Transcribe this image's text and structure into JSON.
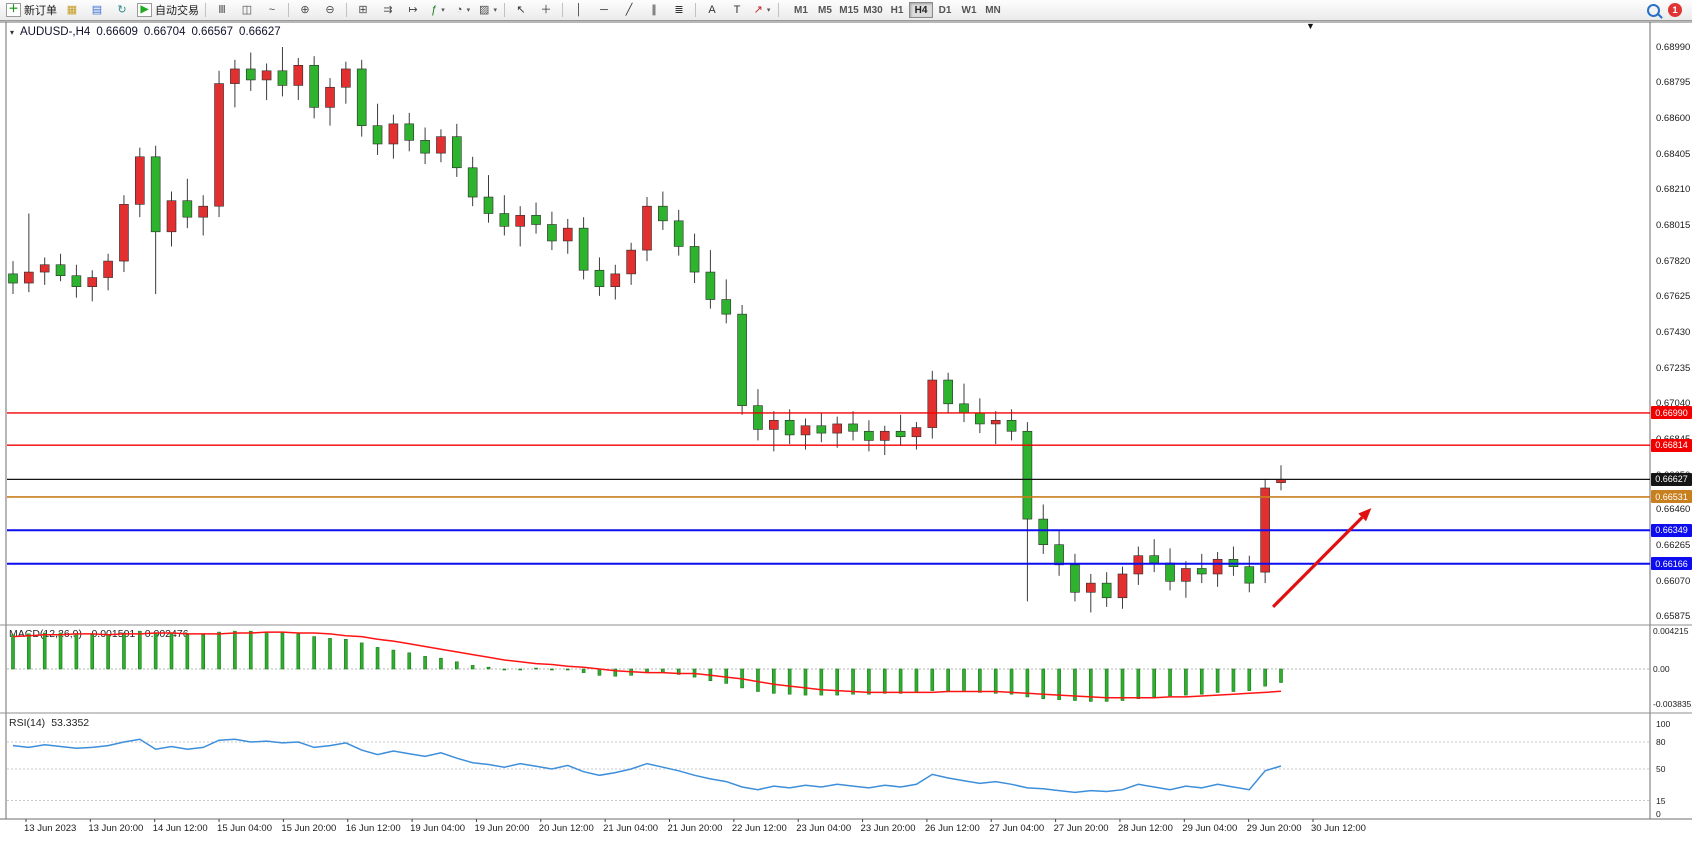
{
  "toolbar": {
    "items": [
      {
        "name": "new-order-button",
        "glyph": "＋",
        "color": "#0e9a0e",
        "label": "新订单",
        "boxed": true
      },
      {
        "name": "charts-window-button",
        "glyph": "▦",
        "color": "#c29a1a"
      },
      {
        "name": "profiles-button",
        "glyph": "▤",
        "color": "#3b6fd4"
      },
      {
        "name": "refresh-button",
        "glyph": "↻",
        "color": "#2e8b8b"
      },
      {
        "name": "auto-trading-button",
        "glyph": "▶",
        "color": "#21aa21",
        "label": "自动交易",
        "boxed": true
      },
      {
        "sep": true
      },
      {
        "name": "bar-chart-mode-button",
        "glyph": "Ⅲ",
        "color": "#4a4a4a"
      },
      {
        "name": "candlestick-mode-button",
        "glyph": "◫",
        "color": "#4a4a4a"
      },
      {
        "name": "line-chart-mode-button",
        "glyph": "~",
        "color": "#4a4a4a"
      },
      {
        "sep": true
      },
      {
        "name": "zoom-in-button",
        "glyph": "⊕",
        "color": "#4a4a4a"
      },
      {
        "name": "zoom-out-button",
        "glyph": "⊖",
        "color": "#4a4a4a"
      },
      {
        "sep": true
      },
      {
        "name": "tile-windows-button",
        "glyph": "⊞",
        "color": "#4a4a4a"
      },
      {
        "name": "auto-scroll-button",
        "glyph": "⇉",
        "color": "#4a4a4a"
      },
      {
        "name": "chart-shift-button",
        "glyph": "↦",
        "color": "#4a4a4a"
      },
      {
        "name": "indicators-button",
        "glyph": "ƒ",
        "color": "#1f7a1f",
        "dropdown": true
      },
      {
        "name": "periods-button",
        "glyph": "◔",
        "color": "#4a4a4a",
        "dropdown": true
      },
      {
        "name": "templates-button",
        "glyph": "▨",
        "color": "#4a4a4a",
        "dropdown": true
      },
      {
        "sep": true
      },
      {
        "name": "cursor-tool-button",
        "glyph": "↖",
        "color": "#333333"
      },
      {
        "name": "crosshair-tool-button",
        "glyph": "＋",
        "color": "#333333"
      },
      {
        "sep": true
      },
      {
        "name": "vertical-line-tool-button",
        "glyph": "│",
        "color": "#333333"
      },
      {
        "name": "horizontal-line-tool-button",
        "glyph": "─",
        "color": "#333333"
      },
      {
        "name": "trendline-tool-button",
        "glyph": "╱",
        "color": "#333333"
      },
      {
        "name": "channel-tool-button",
        "glyph": "∥",
        "color": "#333333"
      },
      {
        "name": "fibonacci-tool-button",
        "glyph": "≣",
        "color": "#333333"
      },
      {
        "sep": true
      },
      {
        "name": "text-tool-button",
        "glyph": "A",
        "color": "#333333"
      },
      {
        "name": "label-tool-button",
        "glyph": "T",
        "color": "#333333"
      },
      {
        "name": "arrows-tool-button",
        "glyph": "↗",
        "color": "#c22727",
        "dropdown": true
      },
      {
        "sep": true
      }
    ],
    "timeframes": [
      "M1",
      "M5",
      "M15",
      "M30",
      "H1",
      "H4",
      "D1",
      "W1",
      "MN"
    ],
    "active_timeframe": "H4",
    "notification_count": "1"
  },
  "chart": {
    "header": {
      "toggle_glyph": "▾",
      "symbol": "AUDUSD-,H4",
      "open": "0.66609",
      "high": "0.66704",
      "low": "0.66567",
      "close": "0.66627"
    },
    "shift_marker": "▼"
  },
  "macd_panel": {
    "name": "MACD(12,26,9)",
    "value_main": "-0.001501",
    "value_signal": "-0.002476",
    "scale": [
      "0.004215",
      "0.00",
      "-0.003835"
    ]
  },
  "rsi_panel": {
    "name": "RSI(14)",
    "value": "53.3352",
    "scale": [
      "100",
      "80",
      "50",
      "15",
      "0"
    ],
    "levels": [
      80,
      50,
      15
    ]
  },
  "chart_data": {
    "type": "candlestick",
    "symbol": "AUDUSD",
    "timeframe": "H4",
    "ohlc_current": {
      "open": 0.66609,
      "high": 0.66704,
      "low": 0.66567,
      "close": 0.66627
    },
    "price_ticks": [
      "0.68990",
      "0.68795",
      "0.68600",
      "0.68405",
      "0.68210",
      "0.68015",
      "0.67820",
      "0.67625",
      "0.67430",
      "0.67235",
      "0.67040",
      "0.66845",
      "0.66650",
      "0.66460",
      "0.66265",
      "0.66070",
      "0.65875"
    ],
    "x_labels": [
      "13 Jun 2023",
      "13 Jun 20:00",
      "14 Jun 12:00",
      "15 Jun 04:00",
      "15 Jun 20:00",
      "16 Jun 12:00",
      "19 Jun 04:00",
      "19 Jun 20:00",
      "20 Jun 12:00",
      "21 Jun 04:00",
      "21 Jun 20:00",
      "22 Jun 12:00",
      "23 Jun 04:00",
      "23 Jun 20:00",
      "26 Jun 12:00",
      "27 Jun 04:00",
      "27 Jun 20:00",
      "28 Jun 12:00",
      "29 Jun 04:00",
      "29 Jun 20:00",
      "30 Jun 12:00"
    ],
    "candles": [
      [
        0.6775,
        0.6782,
        0.6764,
        0.677
      ],
      [
        0.677,
        0.6808,
        0.6765,
        0.6776
      ],
      [
        0.6776,
        0.6784,
        0.6769,
        0.678
      ],
      [
        0.678,
        0.6786,
        0.6771,
        0.6774
      ],
      [
        0.6774,
        0.678,
        0.6762,
        0.6768
      ],
      [
        0.6768,
        0.6777,
        0.676,
        0.6773
      ],
      [
        0.6773,
        0.6786,
        0.6766,
        0.6782
      ],
      [
        0.6782,
        0.6818,
        0.6776,
        0.6813
      ],
      [
        0.6813,
        0.6844,
        0.6806,
        0.6839
      ],
      [
        0.6839,
        0.6845,
        0.6764,
        0.6798
      ],
      [
        0.6798,
        0.682,
        0.679,
        0.6815
      ],
      [
        0.6815,
        0.6827,
        0.68,
        0.6806
      ],
      [
        0.6806,
        0.6818,
        0.6796,
        0.6812
      ],
      [
        0.6812,
        0.6886,
        0.6806,
        0.6879
      ],
      [
        0.6879,
        0.6892,
        0.6866,
        0.6887
      ],
      [
        0.6887,
        0.6896,
        0.6875,
        0.6881
      ],
      [
        0.6881,
        0.689,
        0.687,
        0.6886
      ],
      [
        0.6886,
        0.6899,
        0.6872,
        0.6878
      ],
      [
        0.6878,
        0.6893,
        0.687,
        0.6889
      ],
      [
        0.6889,
        0.6894,
        0.686,
        0.6866
      ],
      [
        0.6866,
        0.6882,
        0.6856,
        0.6877
      ],
      [
        0.6877,
        0.6891,
        0.6868,
        0.6887
      ],
      [
        0.6887,
        0.6892,
        0.685,
        0.6856
      ],
      [
        0.6856,
        0.6868,
        0.684,
        0.6846
      ],
      [
        0.6846,
        0.6862,
        0.6838,
        0.6857
      ],
      [
        0.6857,
        0.6863,
        0.6842,
        0.6848
      ],
      [
        0.6848,
        0.6855,
        0.6835,
        0.6841
      ],
      [
        0.6841,
        0.6854,
        0.6836,
        0.685
      ],
      [
        0.685,
        0.6857,
        0.6828,
        0.6833
      ],
      [
        0.6833,
        0.6839,
        0.6812,
        0.6817
      ],
      [
        0.6817,
        0.6829,
        0.6803,
        0.6808
      ],
      [
        0.6808,
        0.6818,
        0.6796,
        0.6801
      ],
      [
        0.6801,
        0.6812,
        0.679,
        0.6807
      ],
      [
        0.6807,
        0.6814,
        0.6797,
        0.6802
      ],
      [
        0.6802,
        0.6809,
        0.6788,
        0.6793
      ],
      [
        0.6793,
        0.6805,
        0.6786,
        0.68
      ],
      [
        0.68,
        0.6806,
        0.6772,
        0.6777
      ],
      [
        0.6777,
        0.6784,
        0.6763,
        0.6768
      ],
      [
        0.6768,
        0.678,
        0.6761,
        0.6775
      ],
      [
        0.6775,
        0.6792,
        0.6769,
        0.6788
      ],
      [
        0.6788,
        0.6817,
        0.6782,
        0.6812
      ],
      [
        0.6812,
        0.682,
        0.6799,
        0.6804
      ],
      [
        0.6804,
        0.681,
        0.6785,
        0.679
      ],
      [
        0.679,
        0.6797,
        0.677,
        0.6776
      ],
      [
        0.6776,
        0.6788,
        0.6756,
        0.6761
      ],
      [
        0.6761,
        0.6772,
        0.6748,
        0.6753
      ],
      [
        0.6753,
        0.6758,
        0.6698,
        0.6703
      ],
      [
        0.6703,
        0.6712,
        0.6684,
        0.669
      ],
      [
        0.669,
        0.67,
        0.6678,
        0.6695
      ],
      [
        0.6695,
        0.6701,
        0.6682,
        0.6687
      ],
      [
        0.6687,
        0.6696,
        0.6679,
        0.6692
      ],
      [
        0.6692,
        0.6699,
        0.6683,
        0.6688
      ],
      [
        0.6688,
        0.6697,
        0.668,
        0.6693
      ],
      [
        0.6693,
        0.67,
        0.6684,
        0.6689
      ],
      [
        0.6689,
        0.6695,
        0.6678,
        0.6684
      ],
      [
        0.6684,
        0.6692,
        0.6676,
        0.6689
      ],
      [
        0.6689,
        0.6698,
        0.6681,
        0.6686
      ],
      [
        0.6686,
        0.6694,
        0.6679,
        0.6691
      ],
      [
        0.6691,
        0.6722,
        0.6685,
        0.6717
      ],
      [
        0.6717,
        0.6721,
        0.6699,
        0.6704
      ],
      [
        0.6704,
        0.6715,
        0.6694,
        0.6699
      ],
      [
        0.6699,
        0.6707,
        0.6688,
        0.6693
      ],
      [
        0.6693,
        0.67,
        0.6682,
        0.6695
      ],
      [
        0.6695,
        0.6701,
        0.6684,
        0.6689
      ],
      [
        0.6689,
        0.6694,
        0.6596,
        0.6641
      ],
      [
        0.6641,
        0.6649,
        0.6622,
        0.6627
      ],
      [
        0.6627,
        0.6635,
        0.661,
        0.6616
      ],
      [
        0.6616,
        0.6622,
        0.6596,
        0.6601
      ],
      [
        0.6601,
        0.6611,
        0.659,
        0.6606
      ],
      [
        0.6606,
        0.6612,
        0.6593,
        0.6598
      ],
      [
        0.6598,
        0.6615,
        0.6592,
        0.6611
      ],
      [
        0.6611,
        0.6626,
        0.6605,
        0.6621
      ],
      [
        0.6621,
        0.663,
        0.6612,
        0.6617
      ],
      [
        0.6617,
        0.6625,
        0.6602,
        0.6607
      ],
      [
        0.6607,
        0.6618,
        0.6598,
        0.6614
      ],
      [
        0.6614,
        0.6622,
        0.6606,
        0.6611
      ],
      [
        0.6611,
        0.6623,
        0.6604,
        0.6619
      ],
      [
        0.6619,
        0.6626,
        0.661,
        0.6615
      ],
      [
        0.6615,
        0.6621,
        0.6601,
        0.6606
      ],
      [
        0.6612,
        0.6663,
        0.6606,
        0.6658
      ],
      [
        0.66609,
        0.66704,
        0.66567,
        0.66627
      ]
    ],
    "macd": {
      "params": "12,26,9",
      "histogram": [
        0.0038,
        0.0039,
        0.004,
        0.004,
        0.0039,
        0.0038,
        0.0038,
        0.004,
        0.0042,
        0.004,
        0.0039,
        0.0038,
        0.0038,
        0.0041,
        0.0042,
        0.0042,
        0.0041,
        0.004,
        0.0039,
        0.0036,
        0.0034,
        0.0033,
        0.0029,
        0.0024,
        0.0021,
        0.0018,
        0.0014,
        0.0012,
        0.0008,
        0.0004,
        0.0002,
        0.0,
        0.0,
        0.0001,
        -0.0001,
        -0.0001,
        -0.0004,
        -0.0007,
        -0.0008,
        -0.0007,
        -0.0004,
        -0.0004,
        -0.0006,
        -0.0009,
        -0.0013,
        -0.0016,
        -0.0021,
        -0.0025,
        -0.0027,
        -0.0028,
        -0.0029,
        -0.0029,
        -0.0029,
        -0.0028,
        -0.0028,
        -0.0027,
        -0.0027,
        -0.0026,
        -0.0024,
        -0.0024,
        -0.0025,
        -0.0026,
        -0.0027,
        -0.0028,
        -0.0031,
        -0.0033,
        -0.0034,
        -0.0035,
        -0.0036,
        -0.0036,
        -0.0035,
        -0.0033,
        -0.0031,
        -0.003,
        -0.0029,
        -0.0028,
        -0.0026,
        -0.0025,
        -0.0024,
        -0.0019,
        -0.001501
      ],
      "signal": [
        0.0036,
        0.0037,
        0.0038,
        0.0038,
        0.0039,
        0.0039,
        0.0038,
        0.0039,
        0.0039,
        0.004,
        0.004,
        0.0039,
        0.0039,
        0.0039,
        0.004,
        0.004,
        0.0041,
        0.0041,
        0.004,
        0.004,
        0.0039,
        0.0037,
        0.0036,
        0.0033,
        0.0031,
        0.0028,
        0.0025,
        0.0022,
        0.0019,
        0.0016,
        0.0013,
        0.001,
        0.0008,
        0.0006,
        0.0005,
        0.0003,
        0.0002,
        0.0,
        -0.0002,
        -0.0003,
        -0.0004,
        -0.0004,
        -0.0005,
        -0.0005,
        -0.0007,
        -0.0009,
        -0.0011,
        -0.0014,
        -0.0017,
        -0.0019,
        -0.0021,
        -0.0023,
        -0.0024,
        -0.0025,
        -0.0026,
        -0.0026,
        -0.0026,
        -0.0026,
        -0.0026,
        -0.0025,
        -0.0025,
        -0.0025,
        -0.0025,
        -0.0026,
        -0.0027,
        -0.0028,
        -0.0029,
        -0.003,
        -0.0031,
        -0.0032,
        -0.0032,
        -0.0032,
        -0.0032,
        -0.0031,
        -0.0031,
        -0.003,
        -0.0029,
        -0.0028,
        -0.0027,
        -0.0026,
        -0.002476
      ],
      "last_main": -0.001501,
      "last_signal": -0.002476
    },
    "rsi": {
      "period": 14,
      "values": [
        76,
        74,
        77,
        75,
        73,
        74,
        76,
        80,
        83,
        72,
        75,
        72,
        74,
        82,
        83,
        80,
        81,
        79,
        80,
        74,
        76,
        79,
        71,
        66,
        70,
        67,
        64,
        68,
        62,
        57,
        55,
        52,
        56,
        53,
        50,
        54,
        47,
        43,
        46,
        50,
        56,
        52,
        48,
        43,
        39,
        36,
        30,
        27,
        31,
        29,
        32,
        30,
        33,
        31,
        29,
        32,
        30,
        33,
        44,
        40,
        37,
        34,
        36,
        33,
        29,
        28,
        26,
        24,
        26,
        25,
        27,
        33,
        30,
        27,
        31,
        29,
        33,
        30,
        27,
        48,
        53.3352
      ],
      "last": 53.3352
    },
    "hlines": [
      {
        "label": "0.66990",
        "price": 0.6699,
        "color": "#f20000",
        "width": 1.4
      },
      {
        "label": "0.66814",
        "price": 0.66814,
        "color": "#f20000",
        "width": 1.4
      },
      {
        "label": "0.66627",
        "price": 0.66627,
        "color": "#151515",
        "width": 1.2
      },
      {
        "label": "0.66531",
        "price": 0.66531,
        "color": "#c87f1e",
        "width": 1.6
      },
      {
        "label": "0.66349",
        "price": 0.66349,
        "color": "#0d0df0",
        "width": 2
      },
      {
        "label": "0.66166",
        "price": 0.66166,
        "color": "#0d0df0",
        "width": 2
      }
    ],
    "arrow": {
      "from_bar": 79.5,
      "from_price": 0.6593,
      "to_bar": 85.7,
      "to_price": 0.6647,
      "color": "#e01010"
    },
    "colors": {
      "up": "#e23030",
      "down": "#2eb32e",
      "wick": "#3c3c3c",
      "candle_border": "#2b2b2b",
      "macd_histogram": "#2fae2f",
      "macd_signal": "#ff1414",
      "rsi_line": "#3d8edb"
    }
  }
}
